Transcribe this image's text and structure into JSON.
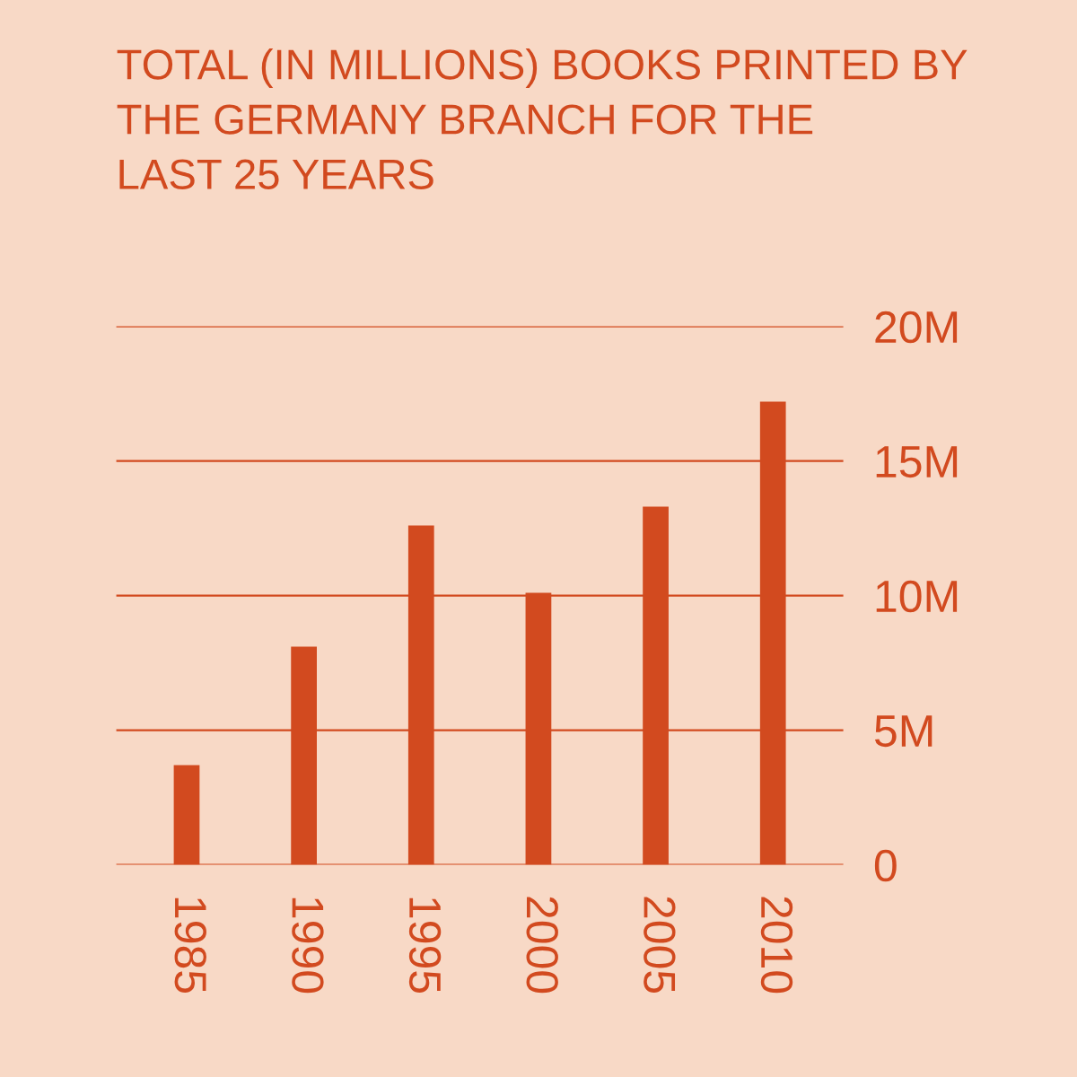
{
  "chart_data": {
    "type": "bar",
    "title": "TOTAL (IN MILLIONS) BOOKS PRINTED BY\nTHE GERMANY BRANCH FOR THE\nLAST 25 YEARS",
    "categories": [
      "1985",
      "1990",
      "1995",
      "2000",
      "2005",
      "2010"
    ],
    "values": [
      3.7,
      8.1,
      12.6,
      10.1,
      13.3,
      17.2
    ],
    "color": "#d24a1f",
    "ylim": [
      0,
      20
    ],
    "yticks": [
      0,
      {
        "value": 5,
        "label": "5M"
      },
      {
        "value": 10,
        "label": "10M"
      },
      {
        "value": 15,
        "label": "15M"
      },
      {
        "value": 20,
        "label": "20M"
      }
    ],
    "grid": "y"
  }
}
